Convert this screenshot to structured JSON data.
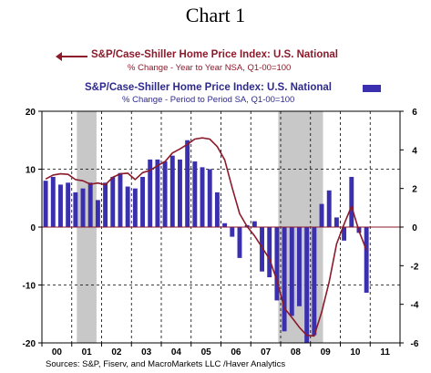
{
  "title": "Chart 1",
  "legend": {
    "series1_title": "S&P/Case-Shiller Home Price Index: U.S. National",
    "series1_sub": "% Change - Year to Year    NSA, Q1-00=100",
    "series2_title": "S&P/Case-Shiller Home Price Index: U.S. National",
    "series2_sub": "% Change - Period to Period    SA, Q1-00=100"
  },
  "source": "Sources:  S&P, Fiserv, and MacroMarkets LLC /Haver Analytics",
  "colors": {
    "line": "#8b1a2b",
    "bars": "#3a2fae",
    "recession": "#c8c8c8"
  },
  "chart_data": {
    "type": "bar+line",
    "x_tick_labels": [
      "00",
      "01",
      "02",
      "03",
      "04",
      "05",
      "06",
      "07",
      "08",
      "09",
      "10",
      "11"
    ],
    "x_range": [
      2000.0,
      2012.0
    ],
    "left_axis": {
      "ylim": [
        -20,
        20
      ],
      "tick_labels": [
        "20",
        "10",
        "0",
        "-10",
        "-20"
      ],
      "tick_values": [
        20,
        10,
        0,
        -10,
        -20
      ]
    },
    "right_axis": {
      "ylim": [
        -6,
        6
      ],
      "tick_labels": [
        "6",
        "4",
        "2",
        "0",
        "-2",
        "-4",
        "-6"
      ],
      "tick_values": [
        6,
        4,
        2,
        0,
        -2,
        -4,
        -6
      ]
    },
    "grid": "dashed horizontal at +/-10; dashed vertical at year boundaries",
    "recession_shading": [
      [
        2001.17,
        2001.83
      ],
      [
        2007.92,
        2009.42
      ]
    ],
    "series": [
      {
        "name": "% Change - Period to Period (SA), right axis",
        "kind": "bar",
        "axis": "right",
        "x": [
          2000.0,
          2000.25,
          2000.5,
          2000.75,
          2001.0,
          2001.25,
          2001.5,
          2001.75,
          2002.0,
          2002.25,
          2002.5,
          2002.75,
          2003.0,
          2003.25,
          2003.5,
          2003.75,
          2004.0,
          2004.25,
          2004.5,
          2004.75,
          2005.0,
          2005.25,
          2005.5,
          2005.75,
          2006.0,
          2006.25,
          2006.5,
          2006.75,
          2007.0,
          2007.25,
          2007.5,
          2007.75,
          2008.0,
          2008.25,
          2008.5,
          2008.75,
          2009.0,
          2009.25,
          2009.5,
          2009.75,
          2010.0,
          2010.25,
          2010.5,
          2010.75
        ],
        "values": [
          2.4,
          2.6,
          2.2,
          2.3,
          1.8,
          2.0,
          2.3,
          1.4,
          2.3,
          2.6,
          2.8,
          2.1,
          2.0,
          2.6,
          3.5,
          3.5,
          3.4,
          3.7,
          3.5,
          4.5,
          3.4,
          3.1,
          3.0,
          1.8,
          0.2,
          -0.5,
          -1.6,
          0.1,
          0.3,
          -2.3,
          -2.6,
          -3.8,
          -5.4,
          -4.6,
          -4.1,
          -6.0,
          -5.6,
          1.2,
          1.9,
          0.5,
          -0.7,
          2.6,
          -0.3,
          -3.4
        ]
      },
      {
        "name": "% Change - Year to Year (NSA), left axis",
        "kind": "line",
        "axis": "left",
        "x": [
          2000.0,
          2000.25,
          2000.5,
          2000.75,
          2001.0,
          2001.25,
          2001.5,
          2001.75,
          2002.0,
          2002.25,
          2002.5,
          2002.75,
          2003.0,
          2003.25,
          2003.5,
          2003.75,
          2004.0,
          2004.25,
          2004.5,
          2004.75,
          2005.0,
          2005.25,
          2005.5,
          2005.75,
          2006.0,
          2006.25,
          2006.5,
          2006.75,
          2007.0,
          2007.25,
          2007.5,
          2007.75,
          2008.0,
          2008.25,
          2008.5,
          2008.75,
          2009.0,
          2009.25,
          2009.5,
          2009.75,
          2010.0,
          2010.25,
          2010.5,
          2010.75
        ],
        "values": [
          8.3,
          9.0,
          9.2,
          9.1,
          8.2,
          8.0,
          7.4,
          7.6,
          7.3,
          8.6,
          9.2,
          9.3,
          8.2,
          9.4,
          9.8,
          10.6,
          11.3,
          12.8,
          13.5,
          14.3,
          15.2,
          15.4,
          15.2,
          13.9,
          11.6,
          6.8,
          2.3,
          0.1,
          -1.5,
          -3.5,
          -5.5,
          -9.2,
          -14.0,
          -15.6,
          -17.3,
          -18.7,
          -18.8,
          -14.7,
          -9.5,
          -2.9,
          0.5,
          3.6,
          -0.7,
          -4.0
        ]
      }
    ]
  }
}
